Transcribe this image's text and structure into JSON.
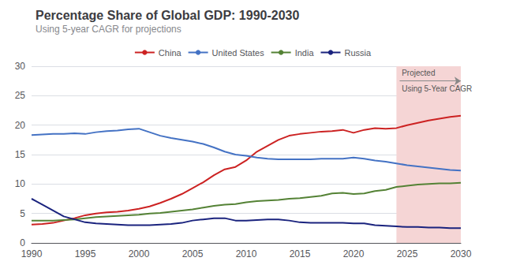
{
  "chart_data": {
    "type": "line",
    "title": "Percentage Share of Global GDP: 1990-2030",
    "subtitle": "Using 5-year CAGR for projections",
    "x": [
      1990,
      1991,
      1992,
      1993,
      1994,
      1995,
      1996,
      1997,
      1998,
      1999,
      2000,
      2001,
      2002,
      2003,
      2004,
      2005,
      2006,
      2007,
      2008,
      2009,
      2010,
      2011,
      2012,
      2013,
      2014,
      2015,
      2016,
      2017,
      2018,
      2019,
      2020,
      2021,
      2022,
      2023,
      2024,
      2025,
      2026,
      2027,
      2028,
      2029,
      2030
    ],
    "series": [
      {
        "name": "China",
        "color": "#cc2222",
        "values": [
          3.1,
          3.2,
          3.4,
          3.8,
          4.2,
          4.7,
          5.0,
          5.2,
          5.3,
          5.5,
          5.8,
          6.2,
          6.8,
          7.5,
          8.3,
          9.3,
          10.3,
          11.5,
          12.5,
          12.9,
          14.0,
          15.5,
          16.5,
          17.5,
          18.2,
          18.5,
          18.7,
          18.9,
          19.0,
          19.2,
          18.7,
          19.2,
          19.5,
          19.4,
          19.5,
          20.0,
          20.4,
          20.8,
          21.1,
          21.4,
          21.6
        ]
      },
      {
        "name": "United States",
        "color": "#4472c4",
        "values": [
          18.3,
          18.4,
          18.5,
          18.5,
          18.6,
          18.5,
          18.8,
          19.0,
          19.1,
          19.3,
          19.4,
          18.8,
          18.2,
          17.8,
          17.5,
          17.2,
          16.8,
          16.2,
          15.5,
          15.0,
          14.8,
          14.5,
          14.3,
          14.2,
          14.2,
          14.2,
          14.2,
          14.3,
          14.3,
          14.3,
          14.5,
          14.3,
          14.0,
          13.8,
          13.5,
          13.2,
          13.0,
          12.8,
          12.6,
          12.4,
          12.3
        ]
      },
      {
        "name": "India",
        "color": "#548235",
        "values": [
          3.8,
          3.8,
          3.8,
          3.9,
          4.0,
          4.2,
          4.4,
          4.5,
          4.6,
          4.7,
          4.8,
          5.0,
          5.1,
          5.3,
          5.5,
          5.7,
          6.0,
          6.3,
          6.5,
          6.6,
          6.9,
          7.1,
          7.2,
          7.3,
          7.5,
          7.6,
          7.8,
          8.0,
          8.4,
          8.5,
          8.3,
          8.4,
          8.8,
          9.0,
          9.5,
          9.7,
          9.9,
          10.0,
          10.1,
          10.1,
          10.2
        ]
      },
      {
        "name": "Russia",
        "color": "#1a237e",
        "values": [
          7.5,
          6.5,
          5.5,
          4.5,
          4.0,
          3.5,
          3.3,
          3.2,
          3.1,
          3.0,
          3.0,
          3.0,
          3.1,
          3.2,
          3.4,
          3.8,
          4.0,
          4.2,
          4.2,
          3.8,
          3.8,
          3.9,
          4.0,
          4.0,
          3.8,
          3.5,
          3.4,
          3.4,
          3.4,
          3.4,
          3.3,
          3.3,
          3.0,
          2.9,
          2.8,
          2.7,
          2.7,
          2.6,
          2.6,
          2.5,
          2.5
        ]
      }
    ],
    "xlim": [
      1990,
      2030
    ],
    "xticks": [
      1990,
      1995,
      2000,
      2005,
      2010,
      2015,
      2020,
      2025,
      2030
    ],
    "ylim": [
      0,
      30
    ],
    "yticks": [
      0,
      5,
      10,
      15,
      20,
      25,
      30
    ],
    "grid": true,
    "legend": "top",
    "shaded_region": {
      "from": 2024,
      "to": 2030,
      "color": "#f5d5d5"
    },
    "arrow": {
      "from": [
        2024.3,
        27.5
      ],
      "to": [
        2030,
        27.5
      ]
    },
    "annotations": [
      {
        "text": "Projected",
        "x": 2024.5,
        "y": 28.2
      },
      {
        "text": "Using 5-Year CAGR",
        "x": 2024.5,
        "y": 26.8
      }
    ]
  }
}
